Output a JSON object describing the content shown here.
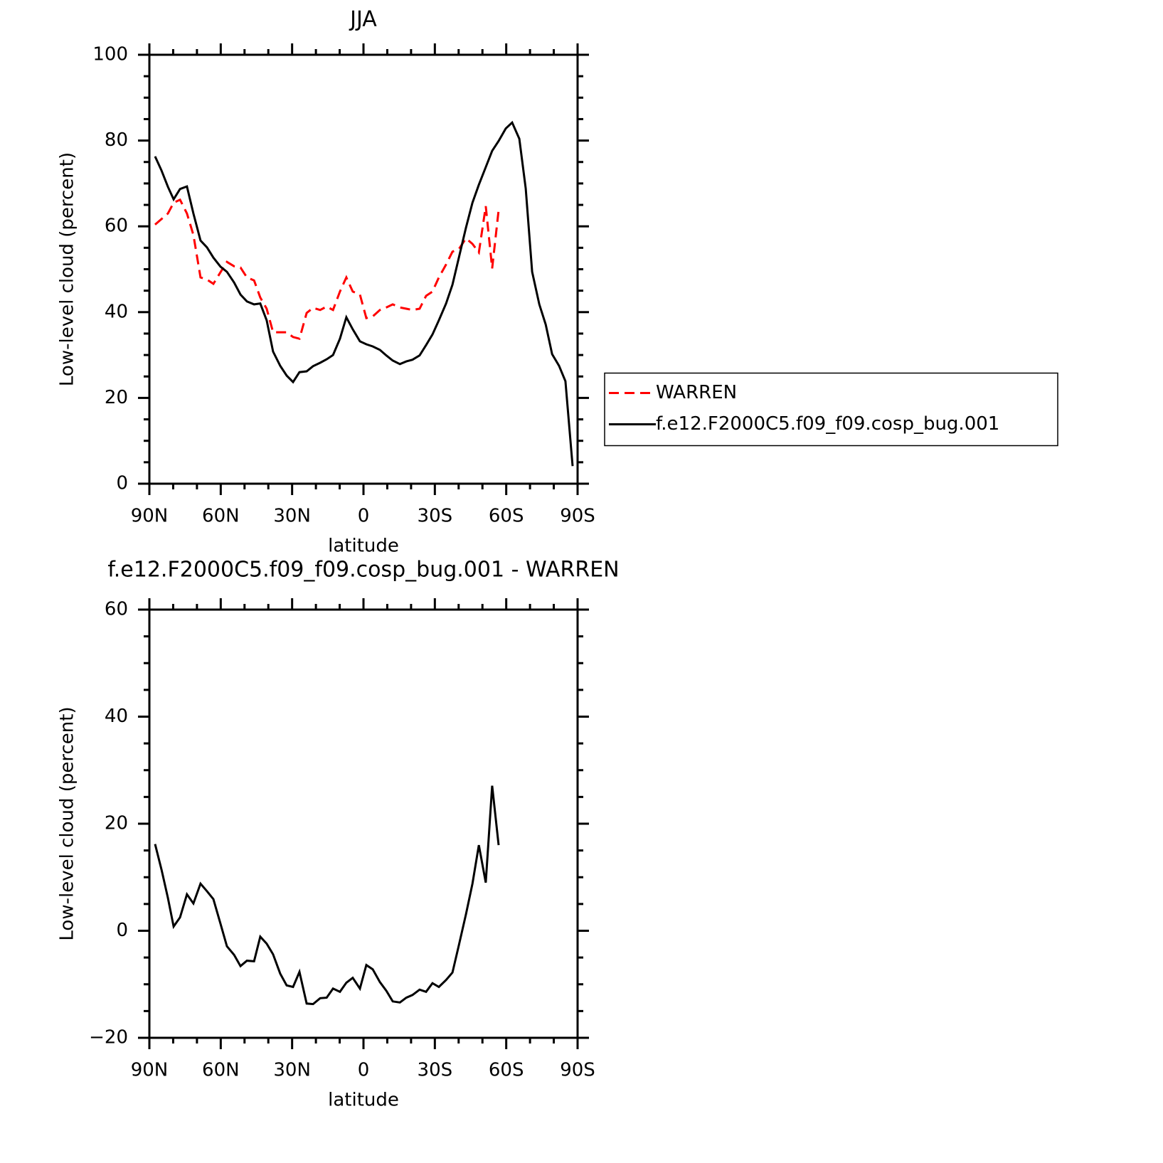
{
  "chart_data": [
    {
      "type": "line",
      "title": "JJA",
      "xlabel": "latitude",
      "ylabel": "Low-level cloud (percent)",
      "xlim": [
        90,
        -90
      ],
      "xticks": [
        {
          "value": 90,
          "label": "90N"
        },
        {
          "value": 60,
          "label": "60N"
        },
        {
          "value": 30,
          "label": "30N"
        },
        0,
        {
          "value": -30,
          "label": "30S"
        },
        {
          "value": -60,
          "label": "60S"
        },
        {
          "value": -90,
          "label": "90S"
        }
      ],
      "xminorticks": [
        80,
        70,
        50,
        40,
        20,
        10,
        -10,
        -20,
        -40,
        -50,
        -70,
        -80
      ],
      "ylim": [
        0,
        100
      ],
      "yticks": [
        0,
        20,
        40,
        60,
        80,
        100
      ],
      "yminorticks": [
        5,
        10,
        15,
        25,
        30,
        35,
        45,
        50,
        55,
        65,
        70,
        75,
        85,
        90,
        95
      ],
      "legend": "right",
      "x": [
        87.6,
        84.9,
        82.2,
        79.8,
        77.1,
        74.2,
        71.5,
        68.5,
        65.8,
        63.1,
        60.1,
        57.4,
        54.4,
        51.7,
        49.0,
        46.0,
        43.4,
        40.7,
        38.0,
        35.0,
        32.3,
        29.6,
        26.9,
        23.9,
        21.2,
        18.2,
        15.5,
        12.8,
        9.9,
        7.2,
        4.5,
        1.5,
        -1.2,
        -3.9,
        -6.9,
        -9.6,
        -12.3,
        -15.3,
        -18.0,
        -20.6,
        -23.6,
        -26.3,
        -29.0,
        -31.7,
        -34.7,
        -37.4,
        -40.1,
        -43.1,
        -45.8,
        -48.5,
        -51.4,
        -54.1,
        -56.8,
        -59.8,
        -62.5,
        -65.5,
        -68.2,
        -70.9,
        -73.9,
        -76.6,
        -79.3,
        -82.2,
        -84.9,
        -87.9
      ],
      "series": [
        {
          "name": "WARREN",
          "color": "#ff0000",
          "linestyle": "dashed",
          "values": [
            60.4,
            61.7,
            63.0,
            65.5,
            66.2,
            63.0,
            58.0,
            48.1,
            47.6,
            46.6,
            49.3,
            51.7,
            50.7,
            50.4,
            48.1,
            47.4,
            43.4,
            40.8,
            35.3,
            35.3,
            35.3,
            34.2,
            33.8,
            39.8,
            41.0,
            40.5,
            41.3,
            40.5,
            44.8,
            48.1,
            44.8,
            44.1,
            38.6,
            39.0,
            40.5,
            41.1,
            41.8,
            41.1,
            40.8,
            40.5,
            40.8,
            43.8,
            44.8,
            48.1,
            51.1,
            54.1,
            54.7,
            57.2,
            55.9,
            53.9,
            64.7,
            50.2,
            63.8,
            null,
            null,
            null,
            null,
            null,
            null,
            null,
            null,
            null,
            null,
            null
          ]
        },
        {
          "name": "f.e12.F2000C5.f09_f09.cosp_bug.001",
          "color": "#000000",
          "linestyle": "solid",
          "values": [
            76.3,
            73.0,
            69.2,
            66.3,
            68.7,
            69.3,
            63.0,
            56.7,
            55.1,
            52.7,
            50.6,
            49.4,
            46.9,
            44.1,
            42.5,
            41.8,
            42.0,
            38.1,
            30.8,
            27.5,
            25.2,
            23.7,
            26.0,
            26.2,
            27.4,
            28.2,
            29.0,
            30.0,
            33.8,
            38.8,
            36.0,
            33.2,
            32.5,
            32.0,
            31.2,
            29.9,
            28.7,
            27.9,
            28.5,
            28.9,
            29.9,
            32.3,
            34.8,
            38.1,
            42.0,
            46.4,
            52.7,
            59.7,
            65.5,
            69.7,
            73.8,
            77.6,
            79.9,
            82.8,
            84.2,
            80.4,
            68.8,
            49.4,
            41.8,
            37.1,
            30.2,
            27.5,
            23.9,
            4.1
          ]
        }
      ]
    },
    {
      "type": "line",
      "title": "f.e12.F2000C5.f09_f09.cosp_bug.001 - WARREN",
      "xlabel": "latitude",
      "ylabel": "Low-level cloud (percent)",
      "xlim": [
        90,
        -90
      ],
      "xticks": [
        {
          "value": 90,
          "label": "90N"
        },
        {
          "value": 60,
          "label": "60N"
        },
        {
          "value": 30,
          "label": "30N"
        },
        0,
        {
          "value": -30,
          "label": "30S"
        },
        {
          "value": -60,
          "label": "60S"
        },
        {
          "value": -90,
          "label": "90S"
        }
      ],
      "xminorticks": [
        80,
        70,
        50,
        40,
        20,
        10,
        -10,
        -20,
        -40,
        -50,
        -70,
        -80
      ],
      "ylim": [
        -20,
        60
      ],
      "yticks": [
        {
          "value": -20,
          "label": "−20"
        },
        0,
        20,
        40,
        60
      ],
      "yminorticks": [
        -15,
        -10,
        -5,
        5,
        10,
        15,
        25,
        30,
        35,
        45,
        50,
        55
      ],
      "x": [
        87.6,
        84.9,
        82.2,
        79.8,
        77.1,
        74.2,
        71.5,
        68.5,
        65.8,
        63.1,
        60.1,
        57.4,
        54.4,
        51.7,
        49.0,
        46.0,
        43.4,
        40.7,
        38.0,
        35.0,
        32.3,
        29.6,
        26.9,
        23.9,
        21.2,
        18.2,
        15.5,
        12.8,
        9.9,
        7.2,
        4.5,
        1.5,
        -1.2,
        -3.9,
        -6.9,
        -9.6,
        -12.3,
        -15.3,
        -18.0,
        -20.6,
        -23.6,
        -26.3,
        -29.0,
        -31.7,
        -34.7,
        -37.4,
        -40.1,
        -43.1,
        -45.8,
        -48.5,
        -51.4,
        -54.1,
        -56.8
      ],
      "series": [
        {
          "color": "#000000",
          "linestyle": "solid",
          "values": [
            16.2,
            11.4,
            6.1,
            0.8,
            2.5,
            6.8,
            5.1,
            8.8,
            7.4,
            5.9,
            1.3,
            -2.9,
            -4.5,
            -6.6,
            -5.6,
            -5.7,
            -1.1,
            -2.4,
            -4.4,
            -8.0,
            -10.2,
            -10.5,
            -7.7,
            -13.6,
            -13.7,
            -12.6,
            -12.5,
            -10.8,
            -11.4,
            -9.7,
            -8.8,
            -10.8,
            -6.4,
            -7.2,
            -9.6,
            -11.2,
            -13.2,
            -13.4,
            -12.5,
            -12.0,
            -11.0,
            -11.4,
            -9.8,
            -10.5,
            -9.2,
            -7.8,
            -2.7,
            3.1,
            8.8,
            16.0,
            9.0,
            27.1,
            16.0
          ]
        }
      ]
    }
  ]
}
